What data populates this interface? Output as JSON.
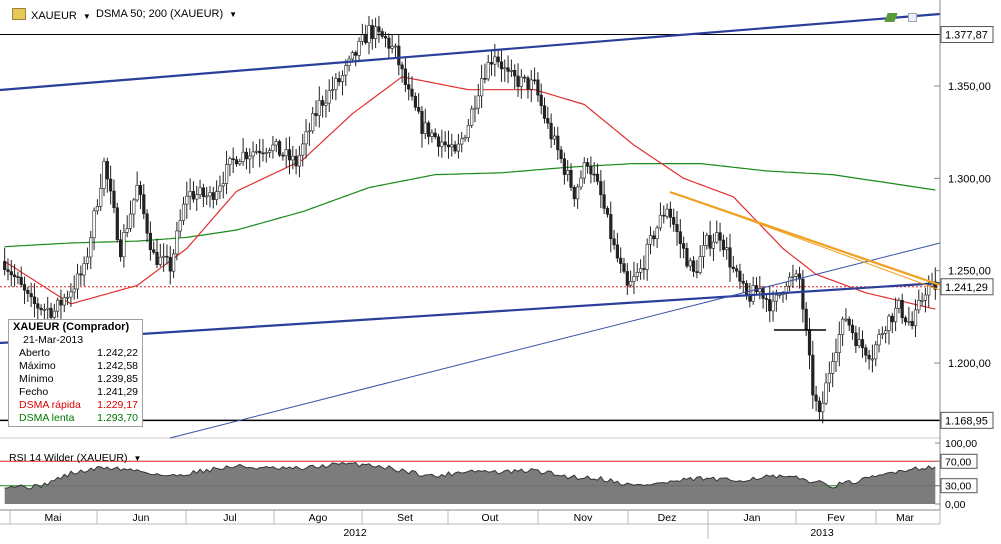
{
  "header": {
    "symbol": "XAUEUR",
    "indicator": "DSMA 50; 200 (XAUEUR)",
    "rsi_label": "RSI 14 Wilder (XAUEUR)"
  },
  "infobox": {
    "title": "XAUEUR (Comprador)",
    "date": "21-Mar-2013",
    "rows": [
      {
        "label": "Aberto",
        "value": "1.242,22",
        "color": "#000000"
      },
      {
        "label": "Máximo",
        "value": "1.242,58",
        "color": "#000000"
      },
      {
        "label": "Mínimo",
        "value": "1.239,85",
        "color": "#000000"
      },
      {
        "label": "Fecho",
        "value": "1.241,29",
        "color": "#000000"
      },
      {
        "label": "DSMA rápida",
        "value": "1.229,17",
        "color": "#dd0000"
      },
      {
        "label": "DSMA lenta",
        "value": "1.293,70",
        "color": "#007700"
      }
    ]
  },
  "chart_data": [
    {
      "type": "candlestick",
      "y_ticks": [
        1200,
        1250,
        1300,
        1350
      ],
      "y_tick_labels": [
        "1.200,00",
        "1.250,00",
        "1.300,00",
        "1.350,00"
      ],
      "price_labels": [
        {
          "value": 1377.87,
          "label": "1.377,87"
        },
        {
          "value": 1241.29,
          "label": "1.241,29"
        },
        {
          "value": 1168.95,
          "label": "1.168,95"
        }
      ],
      "months": [
        "Mai",
        "Jun",
        "Jul",
        "Ago",
        "Set",
        "Out",
        "Nov",
        "Dez",
        "Jan",
        "Fev",
        "Mar"
      ],
      "years": [
        "2012",
        "2013"
      ],
      "ylim": [
        1150,
        1390
      ],
      "last_close": 1241.29,
      "anchors": [
        [
          0,
          1255
        ],
        [
          8,
          1232
        ],
        [
          15,
          1228
        ],
        [
          20,
          1240
        ],
        [
          24,
          1250
        ],
        [
          30,
          1308
        ],
        [
          35,
          1262
        ],
        [
          40,
          1295
        ],
        [
          45,
          1258
        ],
        [
          50,
          1252
        ],
        [
          55,
          1292
        ],
        [
          62,
          1290
        ],
        [
          70,
          1312
        ],
        [
          80,
          1318
        ],
        [
          88,
          1308
        ],
        [
          95,
          1340
        ],
        [
          102,
          1355
        ],
        [
          110,
          1380
        ],
        [
          115,
          1375
        ],
        [
          118,
          1368
        ],
        [
          122,
          1345
        ],
        [
          126,
          1328
        ],
        [
          132,
          1320
        ],
        [
          136,
          1312
        ],
        [
          140,
          1330
        ],
        [
          144,
          1355
        ],
        [
          148,
          1368
        ],
        [
          152,
          1355
        ],
        [
          156,
          1352
        ],
        [
          160,
          1350
        ],
        [
          164,
          1328
        ],
        [
          168,
          1310
        ],
        [
          172,
          1292
        ],
        [
          176,
          1310
        ],
        [
          180,
          1290
        ],
        [
          184,
          1262
        ],
        [
          188,
          1240
        ],
        [
          192,
          1250
        ],
        [
          196,
          1270
        ],
        [
          200,
          1285
        ],
        [
          204,
          1265
        ],
        [
          208,
          1248
        ],
        [
          212,
          1265
        ],
        [
          216,
          1270
        ],
        [
          220,
          1250
        ],
        [
          224,
          1235
        ],
        [
          228,
          1240
        ],
        [
          232,
          1230
        ],
        [
          236,
          1245
        ],
        [
          240,
          1245
        ],
        [
          244,
          1185
        ],
        [
          246,
          1170
        ],
        [
          250,
          1205
        ],
        [
          254,
          1225
        ],
        [
          258,
          1210
        ],
        [
          262,
          1205
        ],
        [
          266,
          1222
        ],
        [
          270,
          1230
        ],
        [
          274,
          1220
        ],
        [
          278,
          1240
        ],
        [
          281,
          1241.29
        ]
      ],
      "dsma_fast": [
        [
          0,
          1255
        ],
        [
          20,
          1232
        ],
        [
          40,
          1242
        ],
        [
          55,
          1262
        ],
        [
          70,
          1293
        ],
        [
          90,
          1310
        ],
        [
          105,
          1335
        ],
        [
          120,
          1355
        ],
        [
          140,
          1348
        ],
        [
          160,
          1348
        ],
        [
          175,
          1340
        ],
        [
          190,
          1318
        ],
        [
          205,
          1300
        ],
        [
          220,
          1290
        ],
        [
          235,
          1262
        ],
        [
          245,
          1248
        ],
        [
          260,
          1238
        ],
        [
          281,
          1229.17
        ]
      ],
      "dsma_slow": [
        [
          0,
          1263
        ],
        [
          20,
          1265
        ],
        [
          40,
          1266
        ],
        [
          55,
          1268
        ],
        [
          70,
          1272
        ],
        [
          90,
          1282
        ],
        [
          110,
          1295
        ],
        [
          130,
          1302
        ],
        [
          150,
          1303
        ],
        [
          170,
          1306
        ],
        [
          190,
          1308
        ],
        [
          210,
          1308
        ],
        [
          230,
          1304
        ],
        [
          250,
          1302
        ],
        [
          265,
          1298
        ],
        [
          281,
          1293.7
        ]
      ],
      "rsi": {
        "levels": [
          0,
          30,
          70,
          100
        ],
        "level_labels": [
          "0,00",
          "30,00",
          "70,00",
          "100,00"
        ],
        "anchors": [
          [
            0,
            30
          ],
          [
            10,
            28
          ],
          [
            20,
            50
          ],
          [
            30,
            60
          ],
          [
            40,
            55
          ],
          [
            50,
            45
          ],
          [
            60,
            55
          ],
          [
            70,
            62
          ],
          [
            80,
            58
          ],
          [
            90,
            58
          ],
          [
            100,
            65
          ],
          [
            110,
            65
          ],
          [
            120,
            55
          ],
          [
            130,
            45
          ],
          [
            140,
            55
          ],
          [
            150,
            52
          ],
          [
            160,
            55
          ],
          [
            170,
            45
          ],
          [
            180,
            42
          ],
          [
            190,
            30
          ],
          [
            200,
            35
          ],
          [
            210,
            42
          ],
          [
            220,
            38
          ],
          [
            230,
            45
          ],
          [
            240,
            42
          ],
          [
            250,
            30
          ],
          [
            260,
            40
          ],
          [
            270,
            55
          ],
          [
            281,
            62
          ]
        ]
      }
    }
  ]
}
